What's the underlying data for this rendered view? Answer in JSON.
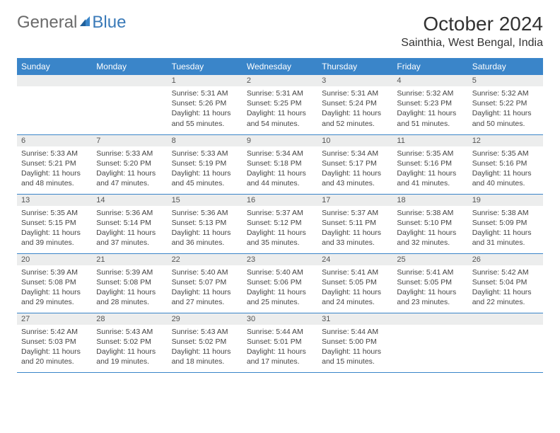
{
  "logo": {
    "text1": "General",
    "text2": "Blue"
  },
  "title": "October 2024",
  "location": "Sainthia, West Bengal, India",
  "headers_bg": "#3a85c9",
  "headers_fg": "#ffffff",
  "daynum_bg": "#eceded",
  "border_color": "#3a85c9",
  "body_font_size": 10.5,
  "days": [
    "Sunday",
    "Monday",
    "Tuesday",
    "Wednesday",
    "Thursday",
    "Friday",
    "Saturday"
  ],
  "weeks": [
    [
      null,
      null,
      {
        "n": "1",
        "sr": "5:31 AM",
        "ss": "5:26 PM",
        "dl": "11 hours and 55 minutes."
      },
      {
        "n": "2",
        "sr": "5:31 AM",
        "ss": "5:25 PM",
        "dl": "11 hours and 54 minutes."
      },
      {
        "n": "3",
        "sr": "5:31 AM",
        "ss": "5:24 PM",
        "dl": "11 hours and 52 minutes."
      },
      {
        "n": "4",
        "sr": "5:32 AM",
        "ss": "5:23 PM",
        "dl": "11 hours and 51 minutes."
      },
      {
        "n": "5",
        "sr": "5:32 AM",
        "ss": "5:22 PM",
        "dl": "11 hours and 50 minutes."
      }
    ],
    [
      {
        "n": "6",
        "sr": "5:33 AM",
        "ss": "5:21 PM",
        "dl": "11 hours and 48 minutes."
      },
      {
        "n": "7",
        "sr": "5:33 AM",
        "ss": "5:20 PM",
        "dl": "11 hours and 47 minutes."
      },
      {
        "n": "8",
        "sr": "5:33 AM",
        "ss": "5:19 PM",
        "dl": "11 hours and 45 minutes."
      },
      {
        "n": "9",
        "sr": "5:34 AM",
        "ss": "5:18 PM",
        "dl": "11 hours and 44 minutes."
      },
      {
        "n": "10",
        "sr": "5:34 AM",
        "ss": "5:17 PM",
        "dl": "11 hours and 43 minutes."
      },
      {
        "n": "11",
        "sr": "5:35 AM",
        "ss": "5:16 PM",
        "dl": "11 hours and 41 minutes."
      },
      {
        "n": "12",
        "sr": "5:35 AM",
        "ss": "5:16 PM",
        "dl": "11 hours and 40 minutes."
      }
    ],
    [
      {
        "n": "13",
        "sr": "5:35 AM",
        "ss": "5:15 PM",
        "dl": "11 hours and 39 minutes."
      },
      {
        "n": "14",
        "sr": "5:36 AM",
        "ss": "5:14 PM",
        "dl": "11 hours and 37 minutes."
      },
      {
        "n": "15",
        "sr": "5:36 AM",
        "ss": "5:13 PM",
        "dl": "11 hours and 36 minutes."
      },
      {
        "n": "16",
        "sr": "5:37 AM",
        "ss": "5:12 PM",
        "dl": "11 hours and 35 minutes."
      },
      {
        "n": "17",
        "sr": "5:37 AM",
        "ss": "5:11 PM",
        "dl": "11 hours and 33 minutes."
      },
      {
        "n": "18",
        "sr": "5:38 AM",
        "ss": "5:10 PM",
        "dl": "11 hours and 32 minutes."
      },
      {
        "n": "19",
        "sr": "5:38 AM",
        "ss": "5:09 PM",
        "dl": "11 hours and 31 minutes."
      }
    ],
    [
      {
        "n": "20",
        "sr": "5:39 AM",
        "ss": "5:08 PM",
        "dl": "11 hours and 29 minutes."
      },
      {
        "n": "21",
        "sr": "5:39 AM",
        "ss": "5:08 PM",
        "dl": "11 hours and 28 minutes."
      },
      {
        "n": "22",
        "sr": "5:40 AM",
        "ss": "5:07 PM",
        "dl": "11 hours and 27 minutes."
      },
      {
        "n": "23",
        "sr": "5:40 AM",
        "ss": "5:06 PM",
        "dl": "11 hours and 25 minutes."
      },
      {
        "n": "24",
        "sr": "5:41 AM",
        "ss": "5:05 PM",
        "dl": "11 hours and 24 minutes."
      },
      {
        "n": "25",
        "sr": "5:41 AM",
        "ss": "5:05 PM",
        "dl": "11 hours and 23 minutes."
      },
      {
        "n": "26",
        "sr": "5:42 AM",
        "ss": "5:04 PM",
        "dl": "11 hours and 22 minutes."
      }
    ],
    [
      {
        "n": "27",
        "sr": "5:42 AM",
        "ss": "5:03 PM",
        "dl": "11 hours and 20 minutes."
      },
      {
        "n": "28",
        "sr": "5:43 AM",
        "ss": "5:02 PM",
        "dl": "11 hours and 19 minutes."
      },
      {
        "n": "29",
        "sr": "5:43 AM",
        "ss": "5:02 PM",
        "dl": "11 hours and 18 minutes."
      },
      {
        "n": "30",
        "sr": "5:44 AM",
        "ss": "5:01 PM",
        "dl": "11 hours and 17 minutes."
      },
      {
        "n": "31",
        "sr": "5:44 AM",
        "ss": "5:00 PM",
        "dl": "11 hours and 15 minutes."
      },
      null,
      null
    ]
  ],
  "labels": {
    "sunrise": "Sunrise: ",
    "sunset": "Sunset: ",
    "daylight": "Daylight: "
  }
}
